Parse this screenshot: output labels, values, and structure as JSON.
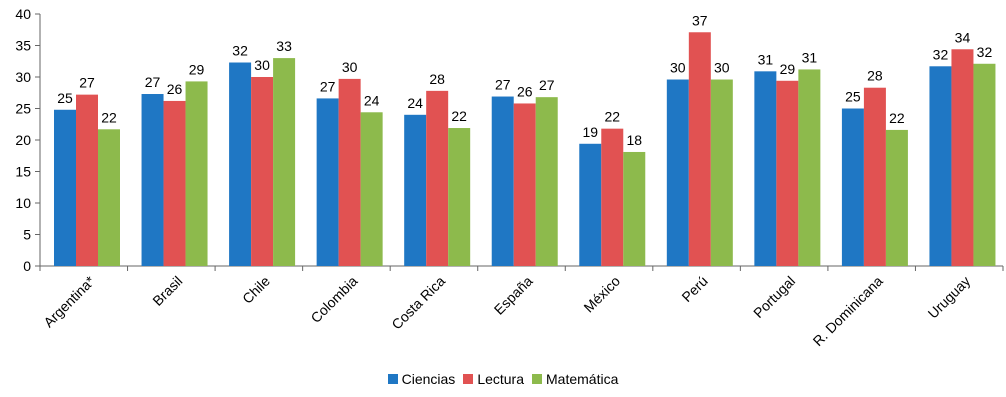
{
  "colors": {
    "Ciencias": "#1f77c4",
    "Lectura": "#e15252",
    "Matemática": "#8dba4c",
    "axis": "#666666"
  },
  "chart_data": {
    "type": "bar",
    "categories": [
      "Argentina*",
      "Brasil",
      "Chile",
      "Colombia",
      "Costa Rica",
      "España",
      "México",
      "Perú",
      "Portugal",
      "R. Dominicana",
      "Uruguay"
    ],
    "series": [
      {
        "name": "Ciencias",
        "values": [
          24.8,
          27.3,
          32.3,
          26.6,
          24.0,
          26.9,
          19.4,
          29.6,
          30.9,
          25.0,
          31.7
        ],
        "labels": [
          "25",
          "27",
          "32",
          "27",
          "24",
          "27",
          "19",
          "30",
          "31",
          "25",
          "32"
        ]
      },
      {
        "name": "Lectura",
        "values": [
          27.2,
          26.2,
          30.0,
          29.7,
          27.8,
          25.8,
          21.8,
          37.1,
          29.4,
          28.3,
          34.4
        ],
        "labels": [
          "27",
          "26",
          "30",
          "30",
          "28",
          "26",
          "22",
          "37",
          "29",
          "28",
          "34"
        ]
      },
      {
        "name": "Matemática",
        "values": [
          21.7,
          29.3,
          33.0,
          24.4,
          21.9,
          26.8,
          18.1,
          29.6,
          31.2,
          21.6,
          32.1
        ],
        "labels": [
          "22",
          "29",
          "33",
          "24",
          "22",
          "27",
          "18",
          "30",
          "31",
          "22",
          "32"
        ]
      }
    ],
    "ylim": [
      0,
      40
    ],
    "yticks": [
      "0",
      "5",
      "10",
      "15",
      "20",
      "25",
      "30",
      "35",
      "40"
    ],
    "grid": false,
    "legend_position": "bottom-center"
  }
}
